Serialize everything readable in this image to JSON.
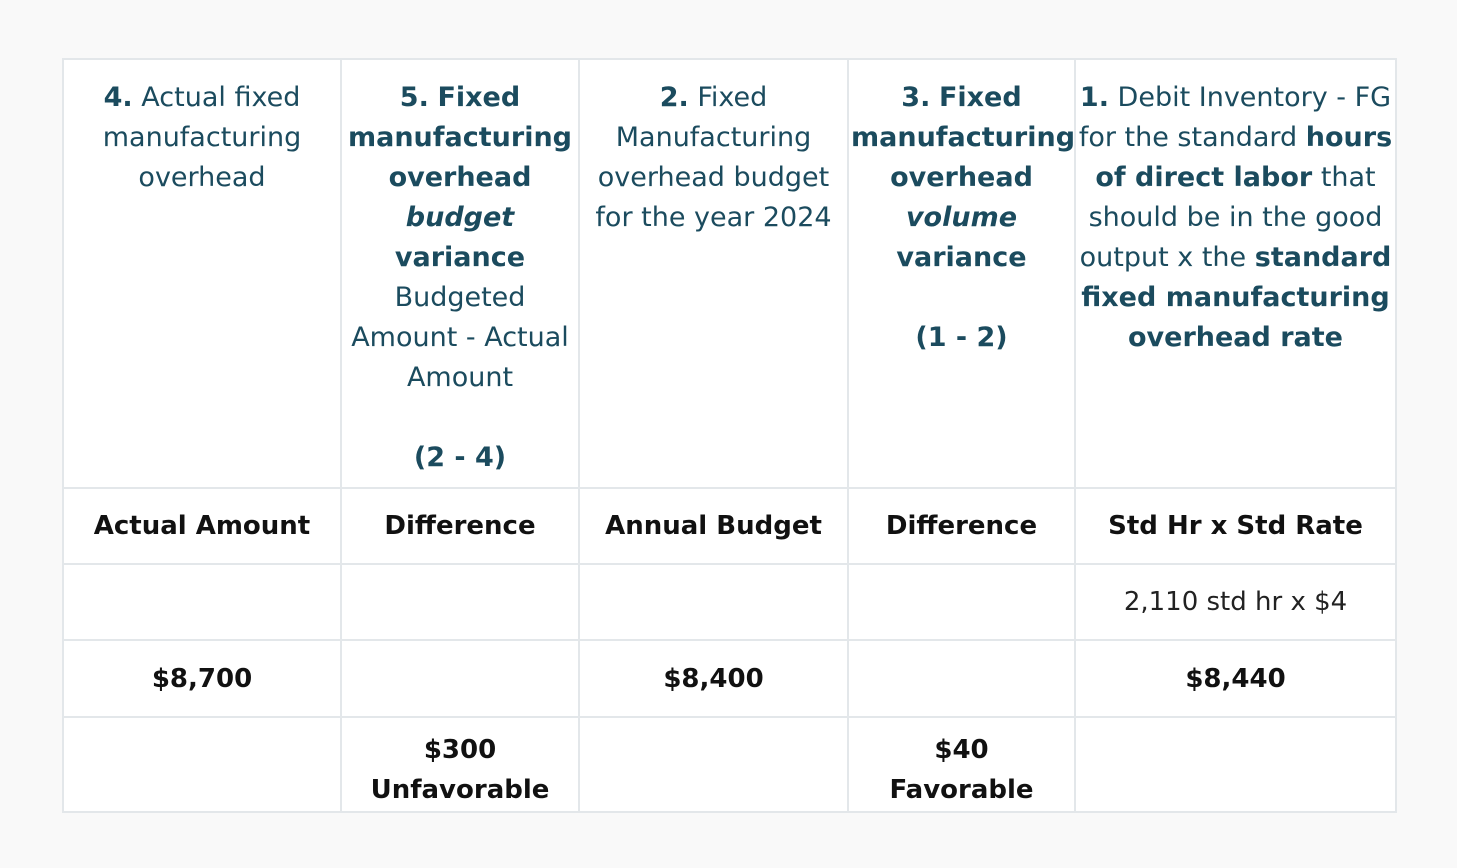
{
  "columns": [
    {
      "number": "4.",
      "title": "Actual fixed manufacturing overhead",
      "subheader": "Actual Amount",
      "calculation": "",
      "amount": "$8,700",
      "variance_amount": "",
      "variance_label": ""
    },
    {
      "number": "5.",
      "title_bold_1": "Fixed manufacturing overhead",
      "title_italic": "budget",
      "title_bold_2": "variance",
      "description": "Budgeted Amount - Actual Amount",
      "formula": "(2 - 4)",
      "subheader": "Difference",
      "calculation": "",
      "amount": "",
      "variance_amount": "$300",
      "variance_label": "Unfavorable"
    },
    {
      "number": "2.",
      "title": "Fixed Manufacturing overhead budget for the year 2024",
      "subheader": "Annual Budget",
      "calculation": "",
      "amount": "$8,400",
      "variance_amount": "",
      "variance_label": ""
    },
    {
      "number": "3.",
      "title_bold_1": "Fixed manufacturing overhead",
      "title_italic": "volume",
      "title_bold_2": "variance",
      "formula": "(1 - 2)",
      "subheader": "Difference",
      "calculation": "",
      "amount": "",
      "variance_amount": "$40",
      "variance_label": "Favorable"
    },
    {
      "number": "1.",
      "text_1": "Debit Inventory - FG for the standard",
      "bold_1": "hours of direct labor",
      "text_2": "that should be in the good output x the",
      "bold_2": "standard fixed manufacturing overhead rate",
      "subheader": "Std Hr x Std Rate",
      "calculation": "2,110 std hr x $4",
      "amount": "$8,440",
      "variance_amount": "",
      "variance_label": ""
    }
  ]
}
